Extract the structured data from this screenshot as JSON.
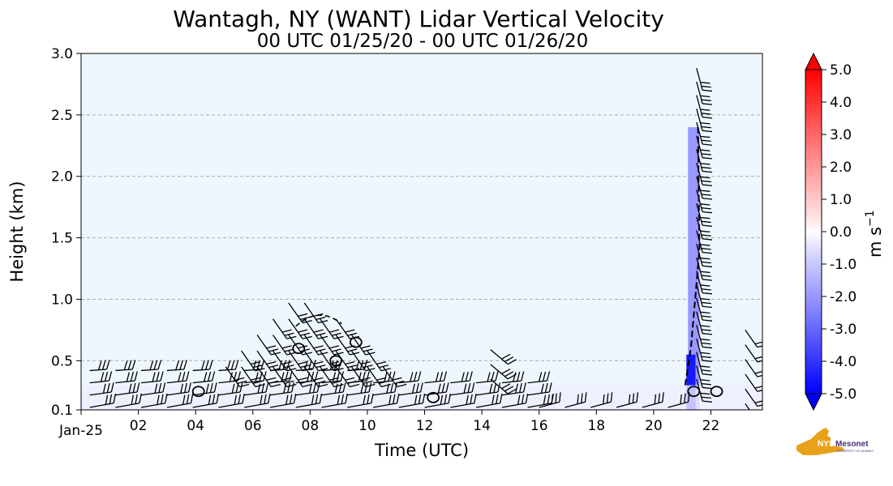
{
  "chart_data": {
    "type": "heatmap",
    "title": "Wantagh, NY (WANT) Lidar Vertical Velocity",
    "subtitle": "00 UTC 01/25/20 - 00 UTC 01/26/20",
    "xlabel": "Time (UTC)",
    "ylabel": "Height (km)",
    "x_ticks": [
      "Jan-25",
      "02",
      "04",
      "06",
      "08",
      "10",
      "12",
      "14",
      "16",
      "18",
      "20",
      "22"
    ],
    "x_tick_hours": [
      0,
      2,
      4,
      6,
      8,
      10,
      12,
      14,
      16,
      18,
      20,
      22
    ],
    "xlim_hours": [
      0,
      23.8
    ],
    "y_ticks": [
      "0.1",
      "0.5",
      "1.0",
      "1.5",
      "2.0",
      "2.5",
      "3.0"
    ],
    "y_tick_values": [
      0.1,
      0.5,
      1.0,
      1.5,
      2.0,
      2.5,
      3.0
    ],
    "ylim": [
      0.1,
      3.0
    ],
    "grid": "horizontal dashed",
    "background_color": "#eef7fe",
    "colorbar": {
      "label": "m s",
      "label_exponent": "−1",
      "ticks": [
        "5.0",
        "4.0",
        "3.0",
        "2.0",
        "1.0",
        "0.0",
        "-1.0",
        "-2.0",
        "-3.0",
        "-4.0",
        "-5.0"
      ],
      "range": [
        -5.0,
        5.0
      ],
      "colormap": "bwr",
      "extend": "both"
    },
    "features": [
      {
        "kind": "downdraft",
        "t_start": 21.2,
        "t_end": 21.6,
        "h_top": 2.4,
        "min_velocity": -4.5
      },
      {
        "kind": "weak_negative_layer",
        "t_start": 0.0,
        "t_end": 23.8,
        "h_top": 0.3,
        "min_velocity": -1.0
      }
    ],
    "wind_barbs": "present",
    "contours": "present"
  },
  "logo": {
    "text": "NYS Mesonet",
    "subtext": "UNIVERSITY AT ALBANY"
  }
}
